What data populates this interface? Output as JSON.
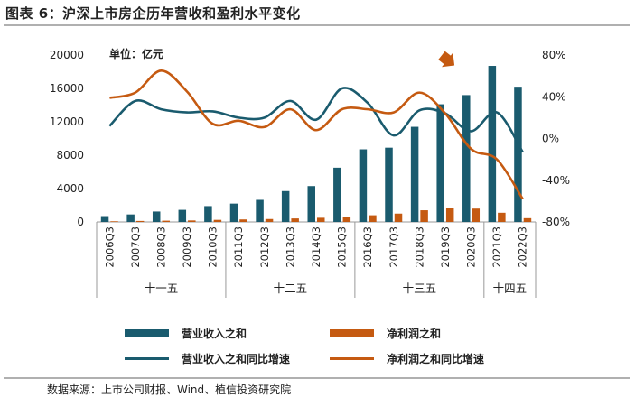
{
  "title": "图表 6：沪深上市房企历年营收和盈利水平变化",
  "source": "数据来源：上市公司财报、Wind、植信投资研究院",
  "colors": {
    "revenue": "#1a5b6e",
    "profit": "#c55a11",
    "axis": "#999999"
  },
  "chart_data": {
    "type": "bar+line",
    "unit_label": "单位：亿元",
    "categories": [
      "2006Q3",
      "2007Q3",
      "2008Q3",
      "2009Q3",
      "2010Q3",
      "2011Q3",
      "2012Q3",
      "2013Q3",
      "2014Q3",
      "2015Q3",
      "2016Q3",
      "2017Q3",
      "2018Q3",
      "2019Q3",
      "2020Q3",
      "2021Q3",
      "2022Q3"
    ],
    "periods": [
      {
        "label": "十一五",
        "from": 0,
        "to": 4
      },
      {
        "label": "十二五",
        "from": 5,
        "to": 9
      },
      {
        "label": "十三五",
        "from": 10,
        "to": 14
      },
      {
        "label": "十四五",
        "from": 15,
        "to": 16
      }
    ],
    "left_axis": {
      "ylim": [
        0,
        20000
      ],
      "ticks": [
        0,
        4000,
        8000,
        12000,
        16000,
        20000
      ]
    },
    "right_axis": {
      "ylim": [
        -80,
        80
      ],
      "ticks": [
        -80,
        -40,
        0,
        40,
        80
      ],
      "tick_labels": [
        "-80%",
        "-40%",
        "0%",
        "40%",
        "80%"
      ]
    },
    "series": [
      {
        "name": "营业收入之和",
        "type": "bar",
        "axis": "left",
        "values": [
          700,
          900,
          1250,
          1450,
          1900,
          2200,
          2650,
          3700,
          4300,
          6500,
          8700,
          8900,
          11400,
          14100,
          15200,
          18700,
          16200
        ]
      },
      {
        "name": "净利润之和",
        "type": "bar",
        "axis": "left",
        "values": [
          80,
          120,
          150,
          180,
          250,
          300,
          350,
          420,
          500,
          600,
          800,
          1000,
          1400,
          1700,
          1600,
          1100,
          450
        ]
      },
      {
        "name": "营业收入之和同比增速",
        "type": "line",
        "axis": "right",
        "values": [
          12,
          36,
          28,
          25,
          26,
          20,
          20,
          36,
          18,
          48,
          34,
          3,
          27,
          24,
          7,
          25,
          -13
        ]
      },
      {
        "name": "净利润之和同比增速",
        "type": "line",
        "axis": "right",
        "values": [
          39,
          44,
          65,
          45,
          14,
          17,
          11,
          28,
          8,
          28,
          28,
          25,
          44,
          24,
          -10,
          -20,
          -58
        ]
      }
    ],
    "annotation": "arrow"
  }
}
